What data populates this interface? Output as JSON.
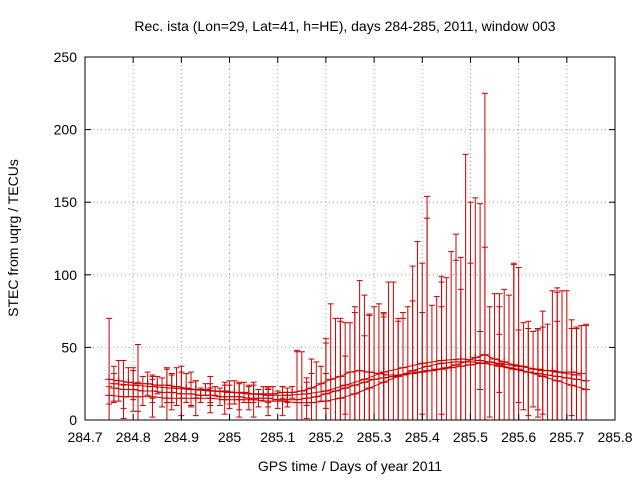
{
  "chart_data": {
    "type": "scatter",
    "title": "Rec. ista (Lon=29, Lat=41, h=HE), days 284-285, 2011, window 003",
    "xlabel": "GPS time / Days of year 2011",
    "ylabel": "STEC from uqrg / TECUs",
    "xlim": [
      284.7,
      285.8
    ],
    "ylim": [
      0,
      250
    ],
    "xticks": [
      "284.7",
      "284.8",
      "284.9",
      "285",
      "285.1",
      "285.2",
      "285.3",
      "285.4",
      "285.5",
      "285.6",
      "285.7",
      "285.8"
    ],
    "yticks": [
      "0",
      "50",
      "100",
      "150",
      "200",
      "250"
    ],
    "grid": true,
    "color": "#cc0000",
    "series": [
      {
        "x": [
          284.75,
          284.77,
          284.79,
          284.81,
          284.83,
          284.85,
          284.87,
          284.89,
          284.91,
          284.93,
          284.95,
          284.97,
          284.99,
          285.01,
          285.03,
          285.05,
          285.07,
          285.09,
          285.11,
          285.13,
          285.15,
          285.17,
          285.19,
          285.21,
          285.23,
          285.25,
          285.27,
          285.29,
          285.31,
          285.33,
          285.35,
          285.37,
          285.39,
          285.41,
          285.43,
          285.45,
          285.47,
          285.49,
          285.51,
          285.53,
          285.55,
          285.57,
          285.59,
          285.61,
          285.63,
          285.65,
          285.67,
          285.69,
          285.71,
          285.73
        ],
        "y": [
          28,
          27,
          26,
          25,
          25,
          24,
          24,
          23,
          22,
          21,
          21,
          20,
          20,
          19,
          19,
          18,
          18,
          18,
          19,
          19,
          20,
          22,
          25,
          28,
          30,
          33,
          34,
          33,
          32,
          31,
          31,
          32,
          33,
          34,
          35,
          36,
          38,
          40,
          43,
          45,
          42,
          40,
          38,
          37,
          35,
          34,
          34,
          33,
          33,
          32
        ],
        "err": [
          42,
          14,
          10,
          27,
          8,
          6,
          12,
          13,
          10,
          6,
          4,
          3,
          6,
          8,
          7,
          6,
          5,
          5,
          4,
          4,
          27,
          10,
          12,
          52,
          38,
          34,
          62,
          40,
          48,
          64,
          37,
          46,
          90,
          120,
          50,
          62,
          90,
          143,
          110,
          180,
          45,
          50,
          70,
          30,
          26,
          30,
          55,
          56,
          30,
          33
        ]
      },
      {
        "x": [
          284.76,
          284.78,
          284.8,
          284.82,
          284.84,
          284.86,
          284.88,
          284.9,
          284.92,
          284.94,
          284.96,
          284.98,
          285.0,
          285.02,
          285.04,
          285.06,
          285.08,
          285.1,
          285.12,
          285.14,
          285.16,
          285.18,
          285.2,
          285.22,
          285.24,
          285.26,
          285.28,
          285.3,
          285.32,
          285.34,
          285.36,
          285.38,
          285.4,
          285.42,
          285.44,
          285.46,
          285.48,
          285.5,
          285.52,
          285.54,
          285.56,
          285.58,
          285.6,
          285.62,
          285.64,
          285.66,
          285.68,
          285.7,
          285.72,
          285.74
        ],
        "y": [
          22,
          21,
          21,
          20,
          20,
          19,
          19,
          18,
          18,
          17,
          17,
          16,
          16,
          16,
          15,
          15,
          15,
          14,
          14,
          14,
          15,
          16,
          18,
          20,
          22,
          24,
          26,
          28,
          29,
          30,
          31,
          32,
          33,
          34,
          35,
          36,
          37,
          38,
          39,
          40,
          38,
          36,
          35,
          33,
          32,
          31,
          30,
          29,
          28,
          27
        ],
        "err": [
          10,
          20,
          15,
          10,
          8,
          10,
          12,
          15,
          8,
          5,
          5,
          6,
          8,
          9,
          8,
          6,
          6,
          6,
          5,
          33,
          14,
          24,
          38,
          50,
          45,
          50,
          60,
          50,
          45,
          65,
          39,
          50,
          75,
          45,
          60,
          80,
          75,
          70,
          110,
          38,
          40,
          50,
          70,
          30,
          30,
          35,
          58,
          60,
          35,
          38
        ]
      },
      {
        "x": [
          284.75,
          284.78,
          284.81,
          284.84,
          284.87,
          284.9,
          284.93,
          284.96,
          284.99,
          285.02,
          285.05,
          285.08,
          285.11,
          285.14,
          285.17,
          285.2,
          285.23,
          285.26,
          285.29,
          285.32,
          285.35,
          285.38,
          285.41,
          285.44,
          285.47,
          285.5,
          285.53,
          285.56,
          285.59,
          285.62,
          285.65,
          285.68,
          285.71,
          285.74
        ],
        "y": [
          17,
          16,
          16,
          16,
          15,
          15,
          15,
          15,
          14,
          14,
          14,
          13,
          13,
          12,
          12,
          13,
          15,
          18,
          22,
          26,
          30,
          34,
          37,
          39,
          40,
          40,
          39,
          37,
          35,
          33,
          30,
          27,
          24,
          21
        ],
        "err": [
          6,
          8,
          10,
          14,
          20,
          22,
          12,
          10,
          10,
          12,
          12,
          10,
          10,
          36,
          30,
          40,
          55,
          60,
          50,
          45,
          40,
          72,
          102,
          60,
          70,
          110,
          80,
          50,
          72,
          35,
          45,
          64,
          45,
          45
        ]
      },
      {
        "x": [
          284.76,
          284.8,
          284.84,
          284.88,
          284.92,
          284.96,
          285.0,
          285.04,
          285.08,
          285.12,
          285.16,
          285.2,
          285.24,
          285.28,
          285.32,
          285.36,
          285.4,
          285.44,
          285.48,
          285.52,
          285.56,
          285.6,
          285.64,
          285.68,
          285.72
        ],
        "y": [
          25,
          24,
          23,
          22,
          21,
          20,
          19,
          18,
          17,
          17,
          18,
          20,
          24,
          28,
          33,
          36,
          39,
          41,
          42,
          41,
          39,
          37,
          35,
          33,
          31
        ],
        "err": [
          12,
          10,
          8,
          10,
          12,
          10,
          8,
          6,
          5,
          5,
          8,
          12,
          20,
          30,
          40,
          38,
          35,
          37,
          48,
          20,
          20,
          25,
          28,
          35,
          33
        ]
      }
    ]
  }
}
